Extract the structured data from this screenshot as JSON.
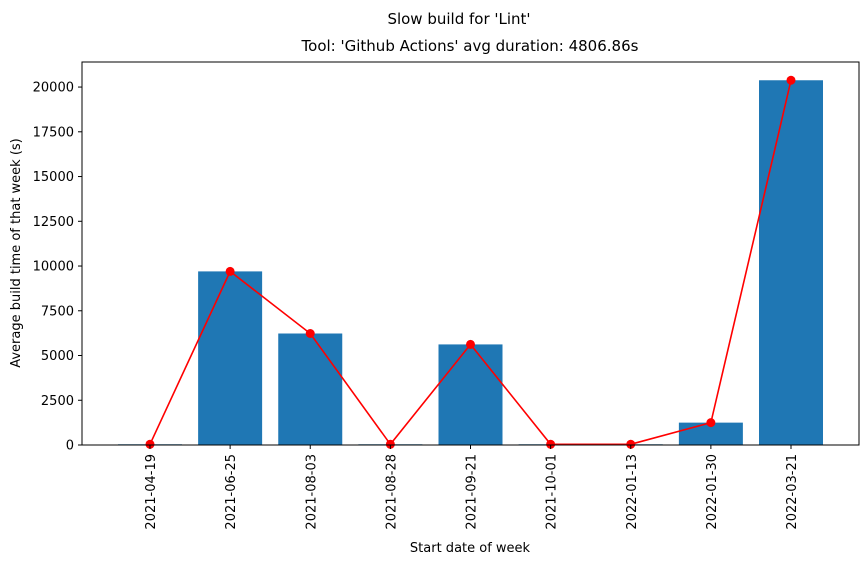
{
  "chart_data": {
    "type": "bar",
    "suptitle": "Slow build for 'Lint'",
    "title": "Tool: 'Github Actions' avg duration: 4806.86s",
    "xlabel": "Start date of week",
    "ylabel": "Average build time of that week (s)",
    "categories": [
      "2021-04-19",
      "2021-06-25",
      "2021-08-03",
      "2021-08-28",
      "2021-09-21",
      "2021-10-01",
      "2022-01-13",
      "2022-01-30",
      "2022-03-21"
    ],
    "values": [
      40,
      9700,
      6230,
      40,
      5620,
      40,
      40,
      1250,
      20380
    ],
    "ylim": [
      0,
      21400
    ],
    "yticks": [
      0,
      2500,
      5000,
      7500,
      10000,
      12500,
      15000,
      17500,
      20000
    ],
    "bar_color": "#1f77b4",
    "line_color": "#ff0000",
    "grid": false
  }
}
